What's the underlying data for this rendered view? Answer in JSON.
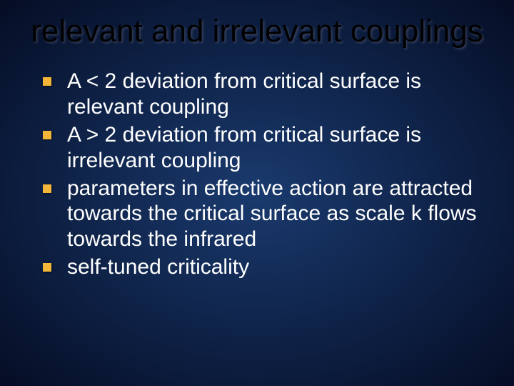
{
  "slide": {
    "title": "relevant and irrelevant couplings",
    "bullets": [
      "A < 2 deviation from critical surface is relevant coupling",
      "A > 2 deviation from critical surface is irrelevant coupling",
      "parameters in effective action are attracted towards the critical surface as scale k flows towards the infrared",
      "self-tuned criticality"
    ],
    "style": {
      "title_color": "#000000",
      "title_fontsize": 44,
      "body_color": "#ffffff",
      "body_fontsize": 30,
      "bullet_color": "#f4b638",
      "background_center": "#1a3a6e",
      "background_edge": "#050d24"
    }
  }
}
